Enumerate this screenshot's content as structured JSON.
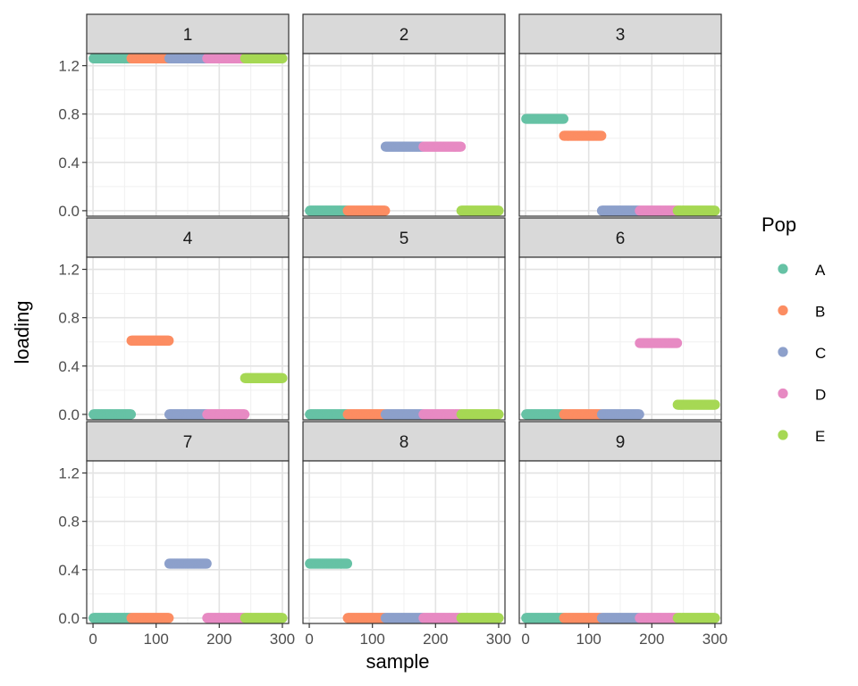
{
  "chart_data": {
    "type": "scatter",
    "facet_layout": "3x3",
    "xlabel": "sample",
    "ylabel": "loading",
    "xlim": [
      0,
      300
    ],
    "ylim": [
      0,
      1.3
    ],
    "x_ticks": [
      0,
      100,
      200,
      300
    ],
    "y_ticks": [
      0.0,
      0.4,
      0.8,
      1.2
    ],
    "x_tick_labels": [
      "0",
      "100",
      "200",
      "300"
    ],
    "y_tick_labels": [
      "0.0",
      "0.4",
      "0.8",
      "1.2"
    ],
    "grid": true,
    "legend": {
      "title": "Pop",
      "placement": "right",
      "entries": [
        {
          "name": "A",
          "color": "#66c2a5"
        },
        {
          "name": "B",
          "color": "#fc8d62"
        },
        {
          "name": "C",
          "color": "#8da0cb"
        },
        {
          "name": "D",
          "color": "#e78ac3"
        },
        {
          "name": "E",
          "color": "#a6d854"
        }
      ]
    },
    "pop_ranges": {
      "A": [
        1,
        60
      ],
      "B": [
        61,
        120
      ],
      "C": [
        121,
        180
      ],
      "D": [
        181,
        240
      ],
      "E": [
        241,
        300
      ]
    },
    "facets": [
      {
        "label": "1",
        "series": [
          {
            "pop": "A",
            "x_range": [
              1,
              60
            ],
            "value": 1.26
          },
          {
            "pop": "B",
            "x_range": [
              61,
              120
            ],
            "value": 1.26
          },
          {
            "pop": "C",
            "x_range": [
              121,
              180
            ],
            "value": 1.26
          },
          {
            "pop": "D",
            "x_range": [
              181,
              240
            ],
            "value": 1.26
          },
          {
            "pop": "E",
            "x_range": [
              241,
              300
            ],
            "value": 1.26
          }
        ]
      },
      {
        "label": "2",
        "series": [
          {
            "pop": "A",
            "x_range": [
              1,
              60
            ],
            "value": 0.0
          },
          {
            "pop": "B",
            "x_range": [
              61,
              120
            ],
            "value": 0.0
          },
          {
            "pop": "C",
            "x_range": [
              121,
              180
            ],
            "value": 0.53
          },
          {
            "pop": "D",
            "x_range": [
              181,
              240
            ],
            "value": 0.53
          },
          {
            "pop": "E",
            "x_range": [
              241,
              300
            ],
            "value": 0.0
          }
        ]
      },
      {
        "label": "3",
        "series": [
          {
            "pop": "A",
            "x_range": [
              1,
              60
            ],
            "value": 0.76
          },
          {
            "pop": "B",
            "x_range": [
              61,
              120
            ],
            "value": 0.62
          },
          {
            "pop": "C",
            "x_range": [
              121,
              180
            ],
            "value": 0.0
          },
          {
            "pop": "D",
            "x_range": [
              181,
              240
            ],
            "value": 0.0
          },
          {
            "pop": "E",
            "x_range": [
              241,
              300
            ],
            "value": 0.0
          }
        ]
      },
      {
        "label": "4",
        "series": [
          {
            "pop": "A",
            "x_range": [
              1,
              60
            ],
            "value": 0.0
          },
          {
            "pop": "B",
            "x_range": [
              61,
              120
            ],
            "value": 0.61
          },
          {
            "pop": "C",
            "x_range": [
              121,
              180
            ],
            "value": 0.0
          },
          {
            "pop": "D",
            "x_range": [
              181,
              240
            ],
            "value": 0.0
          },
          {
            "pop": "E",
            "x_range": [
              241,
              300
            ],
            "value": 0.3
          }
        ]
      },
      {
        "label": "5",
        "series": [
          {
            "pop": "A",
            "x_range": [
              1,
              60
            ],
            "value": 0.0
          },
          {
            "pop": "B",
            "x_range": [
              61,
              120
            ],
            "value": 0.0
          },
          {
            "pop": "C",
            "x_range": [
              121,
              180
            ],
            "value": 0.0
          },
          {
            "pop": "D",
            "x_range": [
              181,
              240
            ],
            "value": 0.0
          },
          {
            "pop": "E",
            "x_range": [
              241,
              300
            ],
            "value": 0.0
          }
        ]
      },
      {
        "label": "6",
        "series": [
          {
            "pop": "A",
            "x_range": [
              1,
              60
            ],
            "value": 0.0
          },
          {
            "pop": "B",
            "x_range": [
              61,
              120
            ],
            "value": 0.0
          },
          {
            "pop": "C",
            "x_range": [
              121,
              180
            ],
            "value": 0.0
          },
          {
            "pop": "D",
            "x_range": [
              181,
              240
            ],
            "value": 0.59
          },
          {
            "pop": "E",
            "x_range": [
              241,
              300
            ],
            "value": 0.08
          }
        ]
      },
      {
        "label": "7",
        "series": [
          {
            "pop": "A",
            "x_range": [
              1,
              60
            ],
            "value": 0.0
          },
          {
            "pop": "B",
            "x_range": [
              61,
              120
            ],
            "value": 0.0
          },
          {
            "pop": "C",
            "x_range": [
              121,
              180
            ],
            "value": 0.45
          },
          {
            "pop": "D",
            "x_range": [
              181,
              240
            ],
            "value": 0.0
          },
          {
            "pop": "E",
            "x_range": [
              241,
              300
            ],
            "value": 0.0
          }
        ]
      },
      {
        "label": "8",
        "series": [
          {
            "pop": "A",
            "x_range": [
              1,
              60
            ],
            "value": 0.45
          },
          {
            "pop": "B",
            "x_range": [
              61,
              120
            ],
            "value": 0.0
          },
          {
            "pop": "C",
            "x_range": [
              121,
              180
            ],
            "value": 0.0
          },
          {
            "pop": "D",
            "x_range": [
              181,
              240
            ],
            "value": 0.0
          },
          {
            "pop": "E",
            "x_range": [
              241,
              300
            ],
            "value": 0.0
          }
        ]
      },
      {
        "label": "9",
        "series": [
          {
            "pop": "A",
            "x_range": [
              1,
              60
            ],
            "value": 0.0
          },
          {
            "pop": "B",
            "x_range": [
              61,
              120
            ],
            "value": 0.0
          },
          {
            "pop": "C",
            "x_range": [
              121,
              180
            ],
            "value": 0.0
          },
          {
            "pop": "D",
            "x_range": [
              181,
              240
            ],
            "value": 0.0
          },
          {
            "pop": "E",
            "x_range": [
              241,
              300
            ],
            "value": 0.0
          }
        ]
      }
    ]
  }
}
